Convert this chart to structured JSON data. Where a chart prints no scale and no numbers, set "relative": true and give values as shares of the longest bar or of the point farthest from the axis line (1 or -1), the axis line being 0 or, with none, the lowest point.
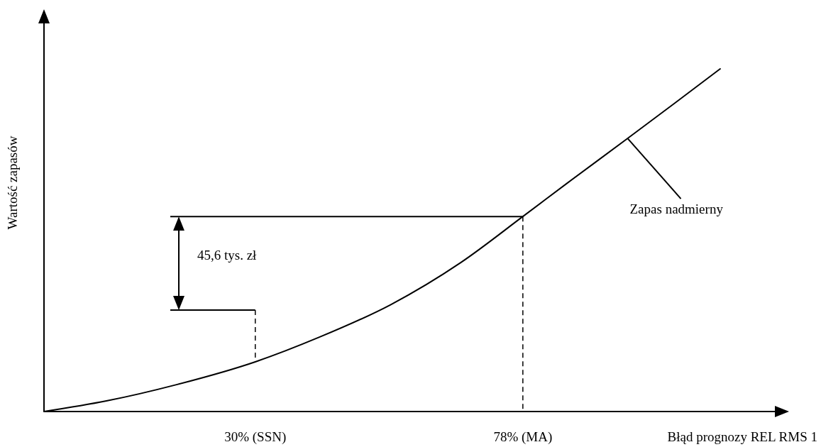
{
  "chart_data": {
    "type": "line",
    "relative": true,
    "xlabel": "Błąd prognozy REL RMS 1",
    "ylabel": "Wartość zapasów",
    "x": [
      -7.9,
      3.3,
      16.0,
      30,
      41.5,
      54.2,
      66.9,
      78,
      86.0,
      96.8,
      105.1,
      113.4
    ],
    "xlim": [
      -7.9,
      125.5
    ],
    "xticks": [
      {
        "value": 30,
        "label": "30% (SSN)"
      },
      {
        "value": 78,
        "label": "78% (MA)"
      }
    ],
    "series": [
      {
        "color": "#000000",
        "values": [
          0,
          0.031,
          0.079,
          0.145,
          0.217,
          0.311,
          0.435,
          0.569,
          0.667,
          0.797,
          0.898,
          1
        ]
      }
    ],
    "ref_lines": [
      {
        "axis": "y",
        "value": 0.296,
        "color": "#000000",
        "line_style": "solid"
      },
      {
        "axis": "y",
        "value": 0.569,
        "color": "#000000",
        "line_style": "solid"
      },
      {
        "axis": "x",
        "value": 30,
        "color": "#000000",
        "line_style": "dashed"
      },
      {
        "axis": "x",
        "value": 78,
        "color": "#000000",
        "line_style": "dashed"
      }
    ],
    "marker": "none",
    "line_style": "solid",
    "grid": false,
    "legend": false,
    "annotations": [
      "45,6 tys. zł",
      "Zapas nadmierny"
    ]
  }
}
